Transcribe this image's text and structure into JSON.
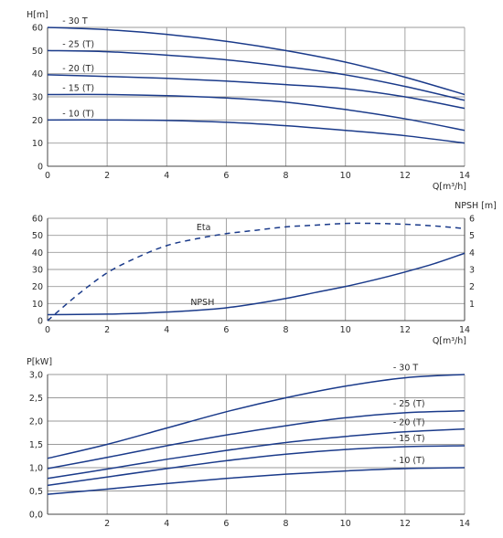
{
  "chart_data": [
    {
      "type": "line",
      "ylabel": "H[m]",
      "xlabel": "Q[m³/h]",
      "xlim": [
        0,
        14
      ],
      "ylim": [
        0,
        60
      ],
      "x_ticks": [
        "0",
        "2",
        "4",
        "6",
        "8",
        "10",
        "12",
        "14"
      ],
      "y_ticks": [
        "0",
        "10",
        "20",
        "30",
        "40",
        "50",
        "60"
      ],
      "grid": true,
      "series": [
        {
          "name": "- 30 T",
          "x": [
            0,
            2,
            4,
            6,
            8,
            10,
            12,
            14
          ],
          "y": [
            60,
            59,
            57,
            54,
            50,
            45,
            38.5,
            31
          ]
        },
        {
          "name": "- 25 (T)",
          "x": [
            0,
            2,
            4,
            6,
            8,
            10,
            12,
            14
          ],
          "y": [
            50,
            49.5,
            48,
            46,
            43,
            39.5,
            34.5,
            28.5
          ]
        },
        {
          "name": "- 20 (T)",
          "x": [
            0,
            2,
            4,
            6,
            8,
            10,
            12,
            14
          ],
          "y": [
            39.5,
            38.8,
            38,
            36.8,
            35.3,
            33.5,
            30,
            25
          ]
        },
        {
          "name": "- 15 (T)",
          "x": [
            0,
            2,
            4,
            6,
            8,
            10,
            12,
            14
          ],
          "y": [
            31,
            31,
            30.5,
            29.5,
            27.7,
            24.5,
            20.5,
            15.5
          ]
        },
        {
          "name": "- 10 (T)",
          "x": [
            0,
            2,
            4,
            6,
            8,
            10,
            12,
            14
          ],
          "y": [
            20,
            20,
            19.8,
            19,
            17.5,
            15.5,
            13.2,
            10
          ]
        }
      ]
    },
    {
      "type": "line",
      "xlabel": "Q[m³/h]",
      "ylabel_right": "NPSH [m]",
      "xlim": [
        0,
        14
      ],
      "ylim": [
        0,
        60
      ],
      "ylim_right": [
        0,
        6
      ],
      "x_ticks": [
        "0",
        "2",
        "4",
        "6",
        "8",
        "10",
        "12",
        "14"
      ],
      "y_ticks": [
        "0",
        "10",
        "20",
        "30",
        "40",
        "50",
        "60"
      ],
      "y_ticks_right": [
        "1",
        "2",
        "3",
        "4",
        "5",
        "6"
      ],
      "grid": true,
      "series": [
        {
          "name": "Eta",
          "axis": "left",
          "style": "dashed",
          "x": [
            0,
            1,
            2,
            3,
            4,
            5,
            6,
            7,
            8,
            9,
            10,
            11,
            12,
            13,
            14
          ],
          "y": [
            0,
            15,
            28,
            37,
            44,
            48,
            51,
            53,
            55,
            56,
            57,
            57,
            56.5,
            55.5,
            54
          ]
        },
        {
          "name": "NPSH",
          "axis": "right",
          "style": "solid",
          "x": [
            0,
            1,
            2,
            3,
            4,
            5,
            6,
            7,
            8,
            9,
            10,
            11,
            12,
            13,
            14
          ],
          "y": [
            0.35,
            0.36,
            0.38,
            0.42,
            0.5,
            0.6,
            0.75,
            1.0,
            1.3,
            1.65,
            2.0,
            2.4,
            2.85,
            3.35,
            3.95
          ]
        }
      ]
    },
    {
      "type": "line",
      "ylabel": "P[kW]",
      "xlim": [
        0,
        14
      ],
      "ylim": [
        0,
        3
      ],
      "x_ticks": [
        "2",
        "4",
        "6",
        "8",
        "10",
        "12",
        "14"
      ],
      "y_ticks": [
        "0,0",
        "0,5",
        "1,0",
        "1,5",
        "2,0",
        "2,5",
        "3,0"
      ],
      "grid": true,
      "series": [
        {
          "name": "- 30 T",
          "x": [
            0,
            2,
            4,
            6,
            8,
            10,
            12,
            14
          ],
          "y": [
            1.2,
            1.5,
            1.85,
            2.2,
            2.5,
            2.75,
            2.93,
            3.0
          ]
        },
        {
          "name": "- 25 (T)",
          "x": [
            0,
            2,
            4,
            6,
            8,
            10,
            12,
            14
          ],
          "y": [
            0.98,
            1.22,
            1.47,
            1.7,
            1.9,
            2.07,
            2.18,
            2.22
          ]
        },
        {
          "name": "- 20 (T)",
          "x": [
            0,
            2,
            4,
            6,
            8,
            10,
            12,
            14
          ],
          "y": [
            0.77,
            0.97,
            1.18,
            1.37,
            1.54,
            1.67,
            1.77,
            1.83
          ]
        },
        {
          "name": "- 15 (T)",
          "x": [
            0,
            2,
            4,
            6,
            8,
            10,
            12,
            14
          ],
          "y": [
            0.62,
            0.8,
            0.98,
            1.15,
            1.29,
            1.39,
            1.45,
            1.47
          ]
        },
        {
          "name": "- 10 (T)",
          "x": [
            0,
            2,
            4,
            6,
            8,
            10,
            12,
            14
          ],
          "y": [
            0.43,
            0.54,
            0.66,
            0.77,
            0.86,
            0.93,
            0.98,
            1.0
          ]
        }
      ]
    }
  ],
  "colors": {
    "curve": "#1a3a8a",
    "grid": "#9a9a9a"
  }
}
